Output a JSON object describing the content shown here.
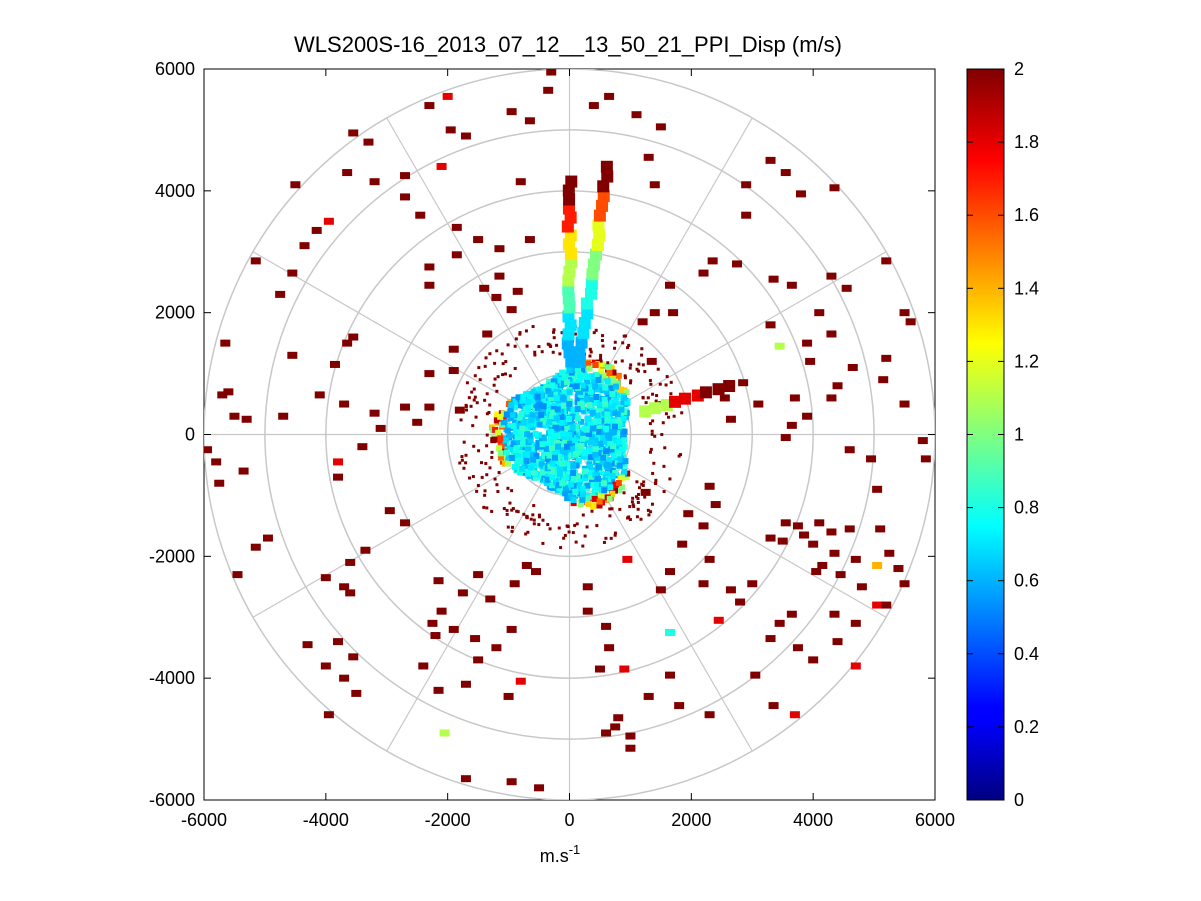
{
  "chart_data": {
    "type": "heatmap",
    "subtype": "polar-ppi",
    "title": "WLS200S-16_2013_07_12__13_50_21_PPI_Disp (m/s)",
    "xlabel": "m.s",
    "xlabel_superscript": "-1",
    "ylabel": "",
    "xlim": [
      -6000,
      6000
    ],
    "ylim": [
      -6000,
      6000
    ],
    "x_ticks": [
      -6000,
      -4000,
      -2000,
      0,
      2000,
      4000,
      6000
    ],
    "y_ticks": [
      -6000,
      -4000,
      -2000,
      0,
      2000,
      4000,
      6000
    ],
    "x_tick_labels": [
      "-6000",
      "-4000",
      "-2000",
      "0",
      "2000",
      "4000",
      "6000"
    ],
    "y_tick_labels": [
      "-6000",
      "-4000",
      "-2000",
      "0",
      "2000",
      "4000",
      "6000"
    ],
    "range_rings": [
      1000,
      2000,
      3000,
      4000,
      5000,
      6000
    ],
    "spoke_angles_deg": [
      0,
      30,
      60,
      90,
      120,
      150,
      180,
      210,
      240,
      270,
      300,
      330
    ],
    "grid": true,
    "colorbar": {
      "colormap": "jet",
      "min": 0,
      "max": 2,
      "ticks": [
        0,
        0.2,
        0.4,
        0.6,
        0.8,
        1,
        1.2,
        1.4,
        1.6,
        1.8,
        2
      ],
      "tick_labels": [
        "0",
        "0.2",
        "0.4",
        "0.6",
        "0.8",
        "1",
        "1.2",
        "1.4",
        "1.6",
        "1.8",
        "2"
      ],
      "position": "right"
    },
    "core": {
      "description_value": "dense field of values 0.6-0.9 within ~1300 m radius, rim of higher values",
      "radius": 1300,
      "dominant_value": 0.7
    },
    "beams": [
      {
        "azimuth_deg": 0,
        "r_start": 1200,
        "r_end": 4300,
        "values": [
          0.6,
          0.7,
          0.9,
          1.1,
          1.3,
          1.7,
          2.0
        ]
      },
      {
        "azimuth_deg": 8,
        "r_start": 1200,
        "r_end": 4600,
        "values": [
          0.6,
          0.7,
          0.8,
          1.0,
          1.2,
          1.6,
          2.0
        ]
      },
      {
        "azimuth_deg": 73,
        "r_start": 1300,
        "r_end": 2900,
        "values": [
          1.1,
          1.8,
          2.0
        ]
      }
    ],
    "points": [
      {
        "x": -2000,
        "y": 5550,
        "v": 1.8
      },
      {
        "x": -2100,
        "y": 4400,
        "v": 1.8
      },
      {
        "x": -3950,
        "y": 3500,
        "v": 1.8
      },
      {
        "x": -3800,
        "y": -450,
        "v": 1.8
      },
      {
        "x": 3450,
        "y": 1450,
        "v": 1.1
      },
      {
        "x": -2050,
        "y": -4900,
        "v": 1.1
      },
      {
        "x": 1650,
        "y": -3250,
        "v": 0.8
      },
      {
        "x": 5050,
        "y": -2150,
        "v": 1.4
      },
      {
        "x": 5050,
        "y": -2800,
        "v": 1.8
      },
      {
        "x": 3700,
        "y": -4600,
        "v": 1.8
      },
      {
        "x": 4700,
        "y": -3800,
        "v": 1.8
      },
      {
        "x": -800,
        "y": -4050,
        "v": 1.8
      },
      {
        "x": 900,
        "y": -3850,
        "v": 1.8
      },
      {
        "x": 2450,
        "y": -3050,
        "v": 1.8
      },
      {
        "x": 950,
        "y": -2050,
        "v": 1.8
      },
      {
        "x": -2300,
        "y": 5400,
        "v": 2
      },
      {
        "x": -1700,
        "y": 4900,
        "v": 2
      },
      {
        "x": -3550,
        "y": 4950,
        "v": 2
      },
      {
        "x": -3300,
        "y": 4800,
        "v": 2
      },
      {
        "x": -3650,
        "y": 4300,
        "v": 2
      },
      {
        "x": -3200,
        "y": 4150,
        "v": 2
      },
      {
        "x": -2700,
        "y": 4250,
        "v": 2
      },
      {
        "x": -2700,
        "y": 3900,
        "v": 2
      },
      {
        "x": -2450,
        "y": 3600,
        "v": 2
      },
      {
        "x": -4150,
        "y": 3350,
        "v": 2
      },
      {
        "x": -4350,
        "y": 3100,
        "v": 2
      },
      {
        "x": -2300,
        "y": 2750,
        "v": 2
      },
      {
        "x": -1850,
        "y": 3400,
        "v": 2
      },
      {
        "x": -1500,
        "y": 3200,
        "v": 2
      },
      {
        "x": -800,
        "y": 4150,
        "v": 2
      },
      {
        "x": -650,
        "y": 3200,
        "v": 2
      },
      {
        "x": -2300,
        "y": 2450,
        "v": 2
      },
      {
        "x": -1200,
        "y": 2250,
        "v": 2
      },
      {
        "x": -950,
        "y": 2050,
        "v": 2
      },
      {
        "x": -5150,
        "y": 2850,
        "v": 2
      },
      {
        "x": -4550,
        "y": 2650,
        "v": 2
      },
      {
        "x": -4750,
        "y": 2300,
        "v": 2
      },
      {
        "x": -3550,
        "y": 1600,
        "v": 2
      },
      {
        "x": -3650,
        "y": 1500,
        "v": 2
      },
      {
        "x": -3850,
        "y": 1150,
        "v": 2
      },
      {
        "x": -4550,
        "y": 1300,
        "v": 2
      },
      {
        "x": -5650,
        "y": 1500,
        "v": 2
      },
      {
        "x": -5600,
        "y": 700,
        "v": 2
      },
      {
        "x": -5700,
        "y": 650,
        "v": 2
      },
      {
        "x": -5500,
        "y": 300,
        "v": 2
      },
      {
        "x": -5300,
        "y": 250,
        "v": 2
      },
      {
        "x": -4700,
        "y": 300,
        "v": 2
      },
      {
        "x": -5350,
        "y": -600,
        "v": 2
      },
      {
        "x": -5950,
        "y": -250,
        "v": 2
      },
      {
        "x": -5800,
        "y": -450,
        "v": 2
      },
      {
        "x": -4100,
        "y": 650,
        "v": 2
      },
      {
        "x": -3700,
        "y": 500,
        "v": 2
      },
      {
        "x": -3200,
        "y": 350,
        "v": 2
      },
      {
        "x": -3100,
        "y": 100,
        "v": 2
      },
      {
        "x": -2700,
        "y": 450,
        "v": 2
      },
      {
        "x": -2300,
        "y": 450,
        "v": 2
      },
      {
        "x": -1800,
        "y": 400,
        "v": 2
      },
      {
        "x": -2500,
        "y": 200,
        "v": 2
      },
      {
        "x": -3400,
        "y": -200,
        "v": 2
      },
      {
        "x": -3800,
        "y": -700,
        "v": 2
      },
      {
        "x": -4950,
        "y": -1700,
        "v": 2
      },
      {
        "x": -5450,
        "y": -2300,
        "v": 2
      },
      {
        "x": -4000,
        "y": -2350,
        "v": 2
      },
      {
        "x": -3600,
        "y": -2100,
        "v": 2
      },
      {
        "x": -3350,
        "y": -1900,
        "v": 2
      },
      {
        "x": -2950,
        "y": -1250,
        "v": 2
      },
      {
        "x": -2700,
        "y": -1450,
        "v": 2
      },
      {
        "x": -3700,
        "y": -2500,
        "v": 2
      },
      {
        "x": -3600,
        "y": -2600,
        "v": 2
      },
      {
        "x": -3800,
        "y": -3400,
        "v": 2
      },
      {
        "x": -3550,
        "y": -3650,
        "v": 2
      },
      {
        "x": -4000,
        "y": -3800,
        "v": 2
      },
      {
        "x": -3700,
        "y": -4000,
        "v": 2
      },
      {
        "x": -3500,
        "y": -4250,
        "v": 2
      },
      {
        "x": -3950,
        "y": -4600,
        "v": 2
      },
      {
        "x": -2100,
        "y": -2900,
        "v": 2
      },
      {
        "x": -2250,
        "y": -3100,
        "v": 2
      },
      {
        "x": -2200,
        "y": -3300,
        "v": 2
      },
      {
        "x": -1900,
        "y": -3200,
        "v": 2
      },
      {
        "x": -1550,
        "y": -3350,
        "v": 2
      },
      {
        "x": -1500,
        "y": -3700,
        "v": 2
      },
      {
        "x": -2400,
        "y": -3800,
        "v": 2
      },
      {
        "x": -2150,
        "y": -4200,
        "v": 2
      },
      {
        "x": -1700,
        "y": -4100,
        "v": 2
      },
      {
        "x": -1200,
        "y": -3500,
        "v": 2
      },
      {
        "x": -950,
        "y": -3200,
        "v": 2
      },
      {
        "x": -1300,
        "y": -2700,
        "v": 2
      },
      {
        "x": -1750,
        "y": -2600,
        "v": 2
      },
      {
        "x": -700,
        "y": -2150,
        "v": 2
      },
      {
        "x": -550,
        "y": -2250,
        "v": 2
      },
      {
        "x": -900,
        "y": -2450,
        "v": 2
      },
      {
        "x": -1700,
        "y": -5650,
        "v": 2
      },
      {
        "x": -950,
        "y": -5700,
        "v": 2
      },
      {
        "x": -500,
        "y": -5800,
        "v": 2
      },
      {
        "x": -1000,
        "y": -4300,
        "v": 2
      },
      {
        "x": 300,
        "y": -2500,
        "v": 2
      },
      {
        "x": 300,
        "y": -2900,
        "v": 2
      },
      {
        "x": 600,
        "y": -3150,
        "v": 2
      },
      {
        "x": 650,
        "y": -3500,
        "v": 2
      },
      {
        "x": 500,
        "y": -3850,
        "v": 2
      },
      {
        "x": 800,
        "y": -4650,
        "v": 2
      },
      {
        "x": 750,
        "y": -4800,
        "v": 2
      },
      {
        "x": 1000,
        "y": -4950,
        "v": 2
      },
      {
        "x": 1000,
        "y": -5150,
        "v": 2
      },
      {
        "x": 600,
        "y": -4900,
        "v": 2
      },
      {
        "x": 1300,
        "y": -4300,
        "v": 2
      },
      {
        "x": 1650,
        "y": -3950,
        "v": 2
      },
      {
        "x": 1650,
        "y": -2250,
        "v": 2
      },
      {
        "x": 1500,
        "y": -2550,
        "v": 2
      },
      {
        "x": 2200,
        "y": -2450,
        "v": 2
      },
      {
        "x": 2650,
        "y": -2550,
        "v": 2
      },
      {
        "x": 3000,
        "y": -2450,
        "v": 2
      },
      {
        "x": 2800,
        "y": -2750,
        "v": 2
      },
      {
        "x": 2300,
        "y": -2050,
        "v": 2
      },
      {
        "x": 1850,
        "y": -1800,
        "v": 2
      },
      {
        "x": 1950,
        "y": -1300,
        "v": 2
      },
      {
        "x": 2300,
        "y": -850,
        "v": 2
      },
      {
        "x": 2400,
        "y": -1150,
        "v": 2
      },
      {
        "x": 1250,
        "y": -950,
        "v": 2
      },
      {
        "x": 1800,
        "y": -4450,
        "v": 2
      },
      {
        "x": 2300,
        "y": -4600,
        "v": 2
      },
      {
        "x": 3050,
        "y": -3950,
        "v": 2
      },
      {
        "x": 3350,
        "y": -4450,
        "v": 2
      },
      {
        "x": 3300,
        "y": -3350,
        "v": 2
      },
      {
        "x": 3450,
        "y": -3100,
        "v": 2
      },
      {
        "x": 3650,
        "y": -2950,
        "v": 2
      },
      {
        "x": 3750,
        "y": -3500,
        "v": 2
      },
      {
        "x": 4000,
        "y": -3700,
        "v": 2
      },
      {
        "x": 4400,
        "y": -3400,
        "v": 2
      },
      {
        "x": 4350,
        "y": -2950,
        "v": 2
      },
      {
        "x": 4700,
        "y": -3100,
        "v": 2
      },
      {
        "x": 3300,
        "y": -1700,
        "v": 2
      },
      {
        "x": 3550,
        "y": -1450,
        "v": 2
      },
      {
        "x": 3500,
        "y": -1750,
        "v": 2
      },
      {
        "x": 3850,
        "y": -1650,
        "v": 2
      },
      {
        "x": 3750,
        "y": -1500,
        "v": 2
      },
      {
        "x": 4000,
        "y": -1800,
        "v": 2
      },
      {
        "x": 4100,
        "y": -1450,
        "v": 2
      },
      {
        "x": 4300,
        "y": -1600,
        "v": 2
      },
      {
        "x": 4350,
        "y": -1950,
        "v": 2
      },
      {
        "x": 4150,
        "y": -2150,
        "v": 2
      },
      {
        "x": 4050,
        "y": -2250,
        "v": 2
      },
      {
        "x": 4450,
        "y": -2300,
        "v": 2
      },
      {
        "x": 4600,
        "y": -1550,
        "v": 2
      },
      {
        "x": 4700,
        "y": -2050,
        "v": 2
      },
      {
        "x": 4800,
        "y": -2500,
        "v": 2
      },
      {
        "x": 5100,
        "y": -1550,
        "v": 2
      },
      {
        "x": 5250,
        "y": -1950,
        "v": 2
      },
      {
        "x": 5400,
        "y": -2200,
        "v": 2
      },
      {
        "x": 5500,
        "y": -2450,
        "v": 2
      },
      {
        "x": 5200,
        "y": -2800,
        "v": 2
      },
      {
        "x": 5050,
        "y": -900,
        "v": 2
      },
      {
        "x": 4950,
        "y": -400,
        "v": 2
      },
      {
        "x": 4600,
        "y": -250,
        "v": 2
      },
      {
        "x": 5800,
        "y": -100,
        "v": 2
      },
      {
        "x": 5500,
        "y": 500,
        "v": 2
      },
      {
        "x": 5850,
        "y": -400,
        "v": 2
      },
      {
        "x": 4650,
        "y": 1100,
        "v": 2
      },
      {
        "x": 5200,
        "y": 1250,
        "v": 2
      },
      {
        "x": 5150,
        "y": 900,
        "v": 2
      },
      {
        "x": 5600,
        "y": 1850,
        "v": 2
      },
      {
        "x": 5500,
        "y": 2000,
        "v": 2
      },
      {
        "x": 5200,
        "y": 2850,
        "v": 2
      },
      {
        "x": 4550,
        "y": 2400,
        "v": 2
      },
      {
        "x": 4300,
        "y": 2600,
        "v": 2
      },
      {
        "x": 4100,
        "y": 2000,
        "v": 2
      },
      {
        "x": 4300,
        "y": 1650,
        "v": 2
      },
      {
        "x": 3900,
        "y": 1500,
        "v": 2
      },
      {
        "x": 3950,
        "y": 1200,
        "v": 2
      },
      {
        "x": 3700,
        "y": 600,
        "v": 2
      },
      {
        "x": 3650,
        "y": 150,
        "v": 2
      },
      {
        "x": 3900,
        "y": 300,
        "v": 2
      },
      {
        "x": 4300,
        "y": 600,
        "v": 2
      },
      {
        "x": 4400,
        "y": 800,
        "v": 2
      },
      {
        "x": 2850,
        "y": 850,
        "v": 2
      },
      {
        "x": 2550,
        "y": 600,
        "v": 2
      },
      {
        "x": 3100,
        "y": 500,
        "v": 2
      },
      {
        "x": 2650,
        "y": 250,
        "v": 2
      },
      {
        "x": 3550,
        "y": -50,
        "v": 2
      },
      {
        "x": 3800,
        "y": 3950,
        "v": 2
      },
      {
        "x": 4350,
        "y": 4050,
        "v": 2
      },
      {
        "x": 3300,
        "y": 4500,
        "v": 2
      },
      {
        "x": 3550,
        "y": 4300,
        "v": 2
      },
      {
        "x": 2900,
        "y": 4100,
        "v": 2
      },
      {
        "x": 1400,
        "y": 4100,
        "v": 2
      },
      {
        "x": 1500,
        "y": 5050,
        "v": 2
      },
      {
        "x": 1100,
        "y": 5250,
        "v": 2
      },
      {
        "x": 2900,
        "y": 3600,
        "v": 2
      },
      {
        "x": 2350,
        "y": 2850,
        "v": 2
      },
      {
        "x": 2200,
        "y": 2650,
        "v": 2
      },
      {
        "x": 2750,
        "y": 2800,
        "v": 2
      },
      {
        "x": 3350,
        "y": 2550,
        "v": 2
      },
      {
        "x": 3650,
        "y": 2450,
        "v": 2
      },
      {
        "x": 1650,
        "y": 2450,
        "v": 2
      },
      {
        "x": 1700,
        "y": 2000,
        "v": 2
      },
      {
        "x": 1400,
        "y": 2000,
        "v": 2
      },
      {
        "x": 3300,
        "y": 1800,
        "v": 2
      },
      {
        "x": 1350,
        "y": 1200,
        "v": 2
      },
      {
        "x": 1200,
        "y": 1850,
        "v": 2
      },
      {
        "x": -1900,
        "y": 1050,
        "v": 2
      },
      {
        "x": -2300,
        "y": 1000,
        "v": 2
      },
      {
        "x": -1900,
        "y": 1400,
        "v": 2
      },
      {
        "x": -1400,
        "y": 2400,
        "v": 2
      },
      {
        "x": -1150,
        "y": 2600,
        "v": 2
      },
      {
        "x": -850,
        "y": 2350,
        "v": 2
      },
      {
        "x": -950,
        "y": 5300,
        "v": 2
      },
      {
        "x": -650,
        "y": 5150,
        "v": 2
      },
      {
        "x": -350,
        "y": 5650,
        "v": 2
      },
      {
        "x": 400,
        "y": 5400,
        "v": 2
      },
      {
        "x": 650,
        "y": 5550,
        "v": 2
      },
      {
        "x": 1300,
        "y": 4550,
        "v": 2
      },
      {
        "x": -300,
        "y": 5950,
        "v": 2
      },
      {
        "x": -1850,
        "y": 2950,
        "v": 2
      },
      {
        "x": -1150,
        "y": 3050,
        "v": 2
      },
      {
        "x": -1950,
        "y": 5000,
        "v": 2
      },
      {
        "x": -1350,
        "y": 1650,
        "v": 2
      },
      {
        "x": -4500,
        "y": 4100,
        "v": 2
      },
      {
        "x": -5750,
        "y": -800,
        "v": 2
      },
      {
        "x": -2150,
        "y": -2400,
        "v": 2
      },
      {
        "x": -1500,
        "y": -2300,
        "v": 2
      },
      {
        "x": -5150,
        "y": -1850,
        "v": 2
      },
      {
        "x": -4300,
        "y": -3450,
        "v": 2
      },
      {
        "x": 2200,
        "y": -1500,
        "v": 2
      }
    ]
  }
}
